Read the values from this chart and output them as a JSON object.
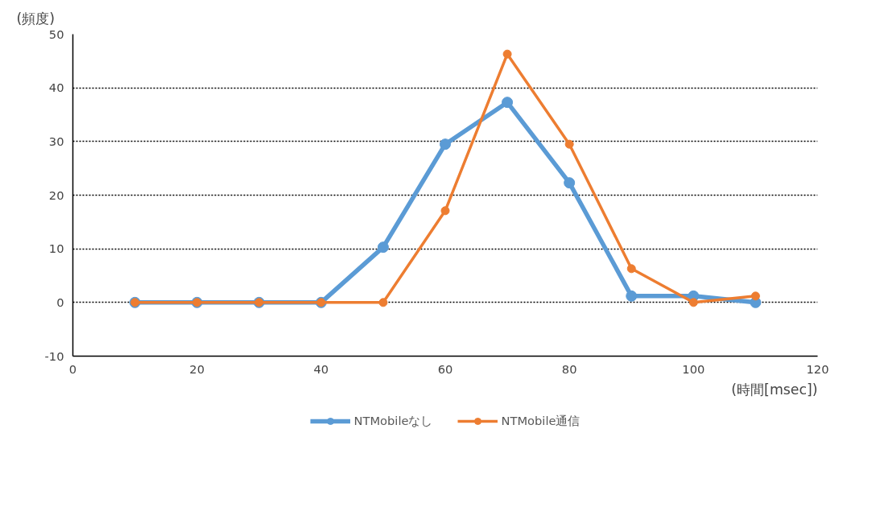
{
  "chart_data": {
    "type": "line",
    "ylabel": "(頻度)",
    "xlabel": "(時間[msec])",
    "x": [
      10,
      20,
      30,
      40,
      50,
      60,
      70,
      80,
      90,
      100,
      110
    ],
    "series": [
      {
        "name": "NTMobileなし",
        "color": "#5b9bd5",
        "values": [
          0,
          0,
          0,
          0,
          10.3,
          29.5,
          37.3,
          22.3,
          1.2,
          1.2,
          0
        ]
      },
      {
        "name": "NTMobile通信",
        "color": "#ed7d31",
        "values": [
          0,
          0,
          0,
          0,
          0,
          17.1,
          46.3,
          29.5,
          6.3,
          0,
          1.2
        ]
      }
    ],
    "xlim": [
      0,
      120
    ],
    "xticks": [
      0,
      20,
      40,
      60,
      80,
      100,
      120
    ],
    "ylim": [
      -10,
      50
    ],
    "yticks": [
      -10,
      0,
      10,
      20,
      30,
      40,
      50
    ],
    "grid": "y",
    "legend": "bottom",
    "marker": "circle",
    "line_style": "solid"
  }
}
